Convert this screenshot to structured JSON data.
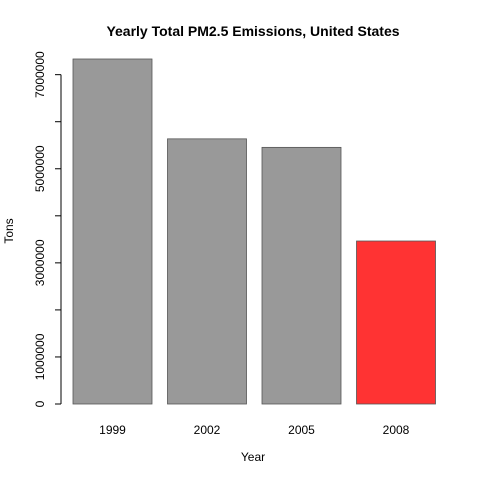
{
  "chart_data": {
    "type": "bar",
    "title": "Yearly Total PM2.5 Emissions, United States",
    "xlabel": "Year",
    "ylabel": "Tons",
    "categories": [
      "1999",
      "2002",
      "2005",
      "2008"
    ],
    "values": [
      7332967,
      5635780,
      5454703,
      3464206
    ],
    "bar_colors": [
      "#999999",
      "#999999",
      "#999999",
      "#ff3333"
    ],
    "yticks": [
      0,
      1000000,
      3000000,
      5000000,
      7000000
    ],
    "ytick_labels": [
      "0",
      "1000000",
      "3000000",
      "5000000",
      "7000000"
    ],
    "yaxis_span": [
      0,
      7000000
    ],
    "ylim": [
      0,
      7332967
    ],
    "grid": false,
    "legend": "none"
  }
}
